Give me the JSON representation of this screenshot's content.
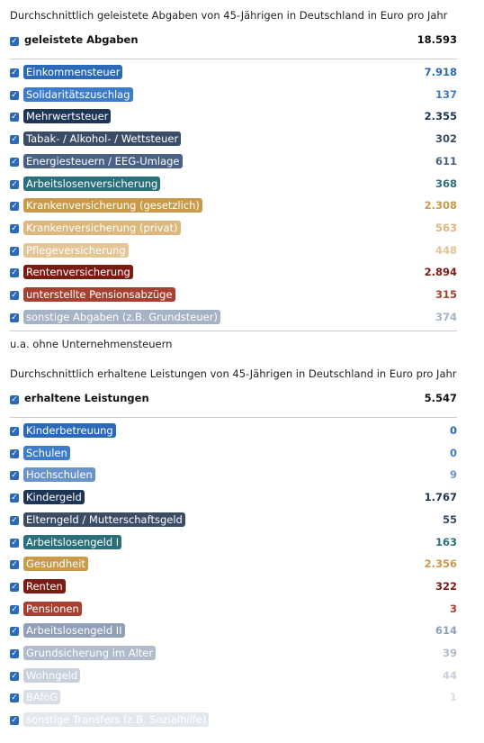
{
  "sections": [
    {
      "title": "Durchschnittlich geleistete Abgaben von 45-Jährigen in Deutschland in Euro pro Jahr",
      "total": {
        "label": "geleistete Abgaben",
        "value": "18.593"
      },
      "items": [
        {
          "label": "Einkommensteuer",
          "value": "7.918",
          "color": "#2a6ab8"
        },
        {
          "label": "Solidaritätszuschlag",
          "value": "137",
          "color": "#3d7cc9"
        },
        {
          "label": "Mehrwertsteuer",
          "value": "2.355",
          "color": "#1e3556"
        },
        {
          "label": "Tabak- / Alkohol- / Wettsteuer",
          "value": "302",
          "color": "#3a4c66"
        },
        {
          "label": "Energiesteuern / EEG-Umlage",
          "value": "611",
          "color": "#4a6185"
        },
        {
          "label": "Arbeitslosenversicherung",
          "value": "368",
          "color": "#2a6f7a"
        },
        {
          "label": "Krankenversicherung (gesetzlich)",
          "value": "2.308",
          "color": "#c99a4a"
        },
        {
          "label": "Krankenversicherung (privat)",
          "value": "563",
          "color": "#dcb87c"
        },
        {
          "label": "Pflegeversicherung",
          "value": "448",
          "color": "#e3c596"
        },
        {
          "label": "Rentenversicherung",
          "value": "2.894",
          "color": "#7a1c14"
        },
        {
          "label": "unterstellte Pensionsabzüge",
          "value": "315",
          "color": "#a64030"
        },
        {
          "label": "sonstige Abgaben (z.B. Grundsteuer)",
          "value": "374",
          "color": "#a6b3c4"
        }
      ],
      "note": "u.a. ohne Unternehmensteuern"
    },
    {
      "title": "Durchschnittlich erhaltene Leistungen von 45-Jährigen in Deutschland in Euro pro Jahr",
      "total": {
        "label": "erhaltene Leistungen",
        "value": "5.547"
      },
      "items": [
        {
          "label": "Kinderbetreuung",
          "value": "0",
          "color": "#2a6ab8"
        },
        {
          "label": "Schulen",
          "value": "0",
          "color": "#3d7cc9"
        },
        {
          "label": "Hochschulen",
          "value": "9",
          "color": "#6a93cc"
        },
        {
          "label": "Kindergeld",
          "value": "1.767",
          "color": "#1e3556"
        },
        {
          "label": "Elterngeld / Mutterschaftsgeld",
          "value": "55",
          "color": "#3a4c66"
        },
        {
          "label": "Arbeitslosengeld I",
          "value": "163",
          "color": "#2a6f7a"
        },
        {
          "label": "Gesundheit",
          "value": "2.356",
          "color": "#c99a4a"
        },
        {
          "label": "Renten",
          "value": "322",
          "color": "#7a1c14"
        },
        {
          "label": "Pensionen",
          "value": "3",
          "color": "#a64030"
        },
        {
          "label": "Arbeitslosengeld II",
          "value": "614",
          "color": "#8fa0b8"
        },
        {
          "label": "Grundsicherung im Alter",
          "value": "39",
          "color": "#b0bccb"
        },
        {
          "label": "Wohngeld",
          "value": "44",
          "color": "#c7d0db"
        },
        {
          "label": "BAföG",
          "value": "1",
          "color": "#d8dee6"
        },
        {
          "label": "sonstige Transfers (z.B. Sozialhilfe)",
          "color": "#e3e8ee"
        }
      ]
    }
  ]
}
